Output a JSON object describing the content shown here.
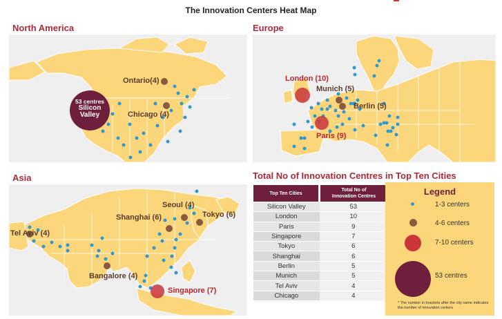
{
  "title": "The Innovation Centers Heat Map",
  "sections": {
    "north_america": "North America",
    "europe": "Europe",
    "asia": "Asia",
    "table": "Total No of Innovation Centres in Top Ten Cities"
  },
  "map_labels": {
    "silicon_valley_line1": "53 centres",
    "silicon_valley_line2": "Silicon",
    "silicon_valley_line3": "Valley",
    "ontario": "Ontario(4)",
    "chicago": "Chicago (4)",
    "london": "London (10)",
    "munich": "Munich (5)",
    "berlin": "Berlin (5)",
    "paris": "Paris (9)",
    "seoul": "Seoul (4)",
    "tokyo": "Tokyo (6)",
    "shanghai": "Shanghai (6)",
    "tel_aviv": "Tel Aviv (4)",
    "bangalore": "Bangalore (4)",
    "singapore": "Singapore (7)"
  },
  "table": {
    "col1": "Top Ten Cities",
    "col2_line1": "Total No of",
    "col2_line2": "Innovation Centres",
    "rows": [
      {
        "city": "Silicon Valley",
        "count": "53"
      },
      {
        "city": "London",
        "count": "10"
      },
      {
        "city": "Paris",
        "count": "9"
      },
      {
        "city": "Singapore",
        "count": "7"
      },
      {
        "city": "Tokyo",
        "count": "6"
      },
      {
        "city": "Shanghai",
        "count": "6"
      },
      {
        "city": "Berlin",
        "count": "5"
      },
      {
        "city": "Munich",
        "count": "5"
      },
      {
        "city": "Tel Aviv",
        "count": "4"
      },
      {
        "city": "Chicago",
        "count": "4"
      }
    ]
  },
  "legend": {
    "title": "Legend",
    "items": [
      "1-3 centers",
      "4-6 centers",
      "7-10 centers",
      "53 centres"
    ],
    "note": "* The number in brackets after the city name indicates the number of innovation centers"
  },
  "colors": {
    "land": "#fbd67a",
    "ocean": "#efefef",
    "small_dot": "#3399cc",
    "medium_dot": "#8b5a3c",
    "large_dot": "#c8363c",
    "huge_dot": "#6e1f3c",
    "section_title": "#a82a3b"
  }
}
